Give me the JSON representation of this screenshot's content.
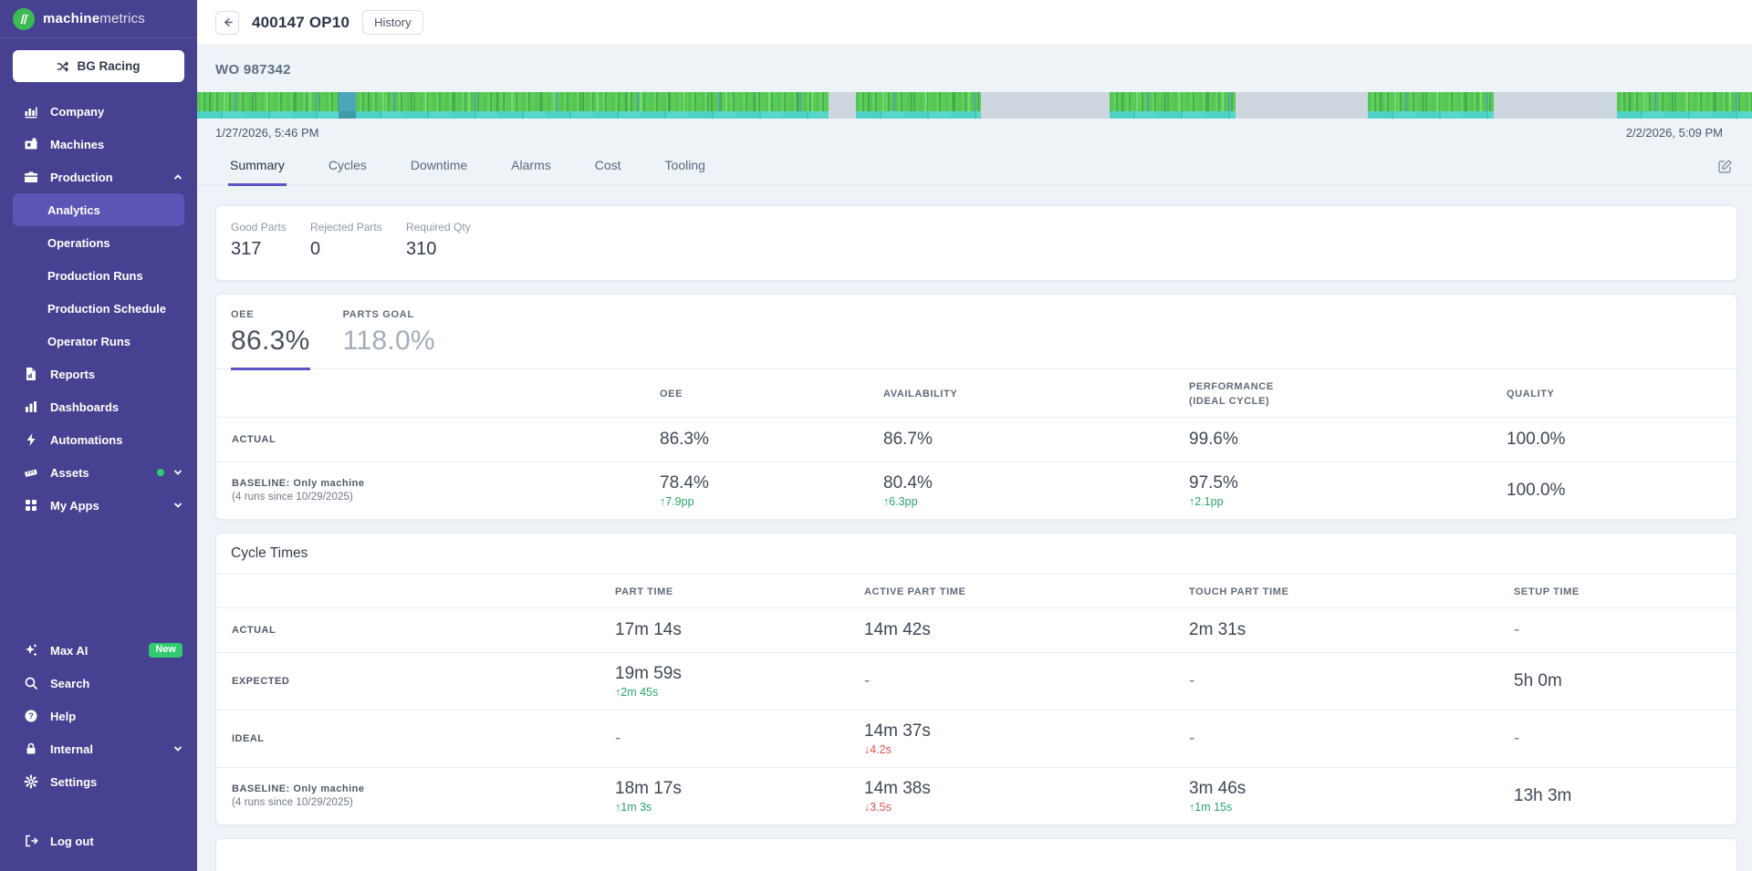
{
  "sidebar": {
    "logo": {
      "brand_bold": "machine",
      "brand_light": "metrics"
    },
    "org_button": {
      "label": "BG Racing"
    },
    "items": [
      {
        "label": "Company"
      },
      {
        "label": "Machines"
      },
      {
        "label": "Production",
        "chevron": "up"
      },
      {
        "label": "Analytics",
        "sub": true,
        "selected": true
      },
      {
        "label": "Operations",
        "sub": true
      },
      {
        "label": "Production Runs",
        "sub": true
      },
      {
        "label": "Production Schedule",
        "sub": true
      },
      {
        "label": "Operator Runs",
        "sub": true
      },
      {
        "label": "Reports"
      },
      {
        "label": "Dashboards"
      },
      {
        "label": "Automations"
      },
      {
        "label": "Assets",
        "status_dot": true,
        "chevron": "down"
      },
      {
        "label": "My Apps",
        "chevron": "down"
      }
    ],
    "footer_items": [
      {
        "label": "Max AI",
        "badge": "New"
      },
      {
        "label": "Search"
      },
      {
        "label": "Help"
      },
      {
        "label": "Internal",
        "chevron": "down"
      },
      {
        "label": "Settings"
      }
    ],
    "logout": {
      "label": "Log out"
    }
  },
  "header": {
    "title": "400147 OP10",
    "history_label": "History"
  },
  "workorder": {
    "label": "WO 987342"
  },
  "timeline": {
    "start_label": "1/27/2026, 5:46 PM",
    "end_label": "2/2/2026, 5:09 PM",
    "segments": [
      {
        "type": "green",
        "width": 9.1
      },
      {
        "type": "teal-block",
        "width": 1.1
      },
      {
        "type": "green",
        "width": 30.4
      },
      {
        "type": "gray",
        "width": 1.8
      },
      {
        "type": "green",
        "width": 8.0
      },
      {
        "type": "gray",
        "width": 8.3
      },
      {
        "type": "green",
        "width": 8.1
      },
      {
        "type": "gray",
        "width": 8.5
      },
      {
        "type": "green",
        "width": 8.1,
        "blue_edge": true
      },
      {
        "type": "gray",
        "width": 7.9
      },
      {
        "type": "green",
        "width": 8.7,
        "blue_edge": true
      }
    ]
  },
  "tabs": [
    {
      "label": "Summary",
      "active": true
    },
    {
      "label": "Cycles"
    },
    {
      "label": "Downtime"
    },
    {
      "label": "Alarms"
    },
    {
      "label": "Cost"
    },
    {
      "label": "Tooling"
    }
  ],
  "parts_summary": [
    {
      "label": "Good Parts",
      "value": "317"
    },
    {
      "label": "Rejected Parts",
      "value": "0"
    },
    {
      "label": "Required Qty",
      "value": "310"
    }
  ],
  "metric_tabs": [
    {
      "label": "OEE",
      "value": "86.3%"
    },
    {
      "label": "PARTS GOAL",
      "value": "118.0%"
    }
  ],
  "oee_table": {
    "headers": {
      "c1": "OEE",
      "c2": "AVAILABILITY",
      "c3a": "PERFORMANCE",
      "c3b": "(IDEAL CYCLE)",
      "c4": "QUALITY"
    },
    "rows": [
      {
        "label": "ACTUAL",
        "sublabel": "",
        "c1": "86.3%",
        "c2": "86.7%",
        "c3": "99.6%",
        "c4": "100.0%",
        "d1": "",
        "d2": "",
        "d3": ""
      },
      {
        "label": "BASELINE: Only machine",
        "sublabel": "(4 runs since 10/29/2025)",
        "c1": "78.4%",
        "c2": "80.4%",
        "c3": "97.5%",
        "c4": "100.0%",
        "d1": "↑7.9pp",
        "d2": "↑6.3pp",
        "d3": "↑2.1pp"
      }
    ]
  },
  "cycle_times": {
    "title": "Cycle Times",
    "headers": {
      "c1": "PART TIME",
      "c2": "ACTIVE PART TIME",
      "c3": "TOUCH PART TIME",
      "c4": "SETUP TIME"
    },
    "rows": [
      {
        "label": "ACTUAL",
        "sublabel": "",
        "c1": "17m 14s",
        "c2": "14m 42s",
        "c3": "2m 31s",
        "c4": "-",
        "d1": "",
        "d2": "",
        "d3": ""
      },
      {
        "label": "EXPECTED",
        "sublabel": "",
        "c1": "19m 59s",
        "c2": "-",
        "c3": "-",
        "c4": "5h 0m",
        "d1": "↑2m 45s",
        "d2": "",
        "d3": ""
      },
      {
        "label": "IDEAL",
        "sublabel": "",
        "c1": "-",
        "c2": "14m 37s",
        "c3": "-",
        "c4": "-",
        "d1": "",
        "d2": "↓4.2s",
        "d3": ""
      },
      {
        "label": "BASELINE: Only machine",
        "sublabel": "(4 runs since 10/29/2025)",
        "c1": "18m 17s",
        "c2": "14m 38s",
        "c3": "3m 46s",
        "c4": "13h 3m",
        "d1": "↑1m 3s",
        "d2": "↓3.5s",
        "d3": "↑1m 15s"
      }
    ]
  },
  "colors": {
    "sidebar_bg": "#474191",
    "sidebar_selected": "#5b55b6",
    "accent_purple": "#5a54c4",
    "logo_green": "#3cba54",
    "badge_green": "#2fcb6e",
    "delta_green": "#27a567",
    "delta_red": "#e0524f",
    "timeline_green": "#55c654",
    "timeline_teal": "#4dd2c5",
    "timeline_gray": "#cdd6de",
    "content_bg": "#eef3f8"
  }
}
